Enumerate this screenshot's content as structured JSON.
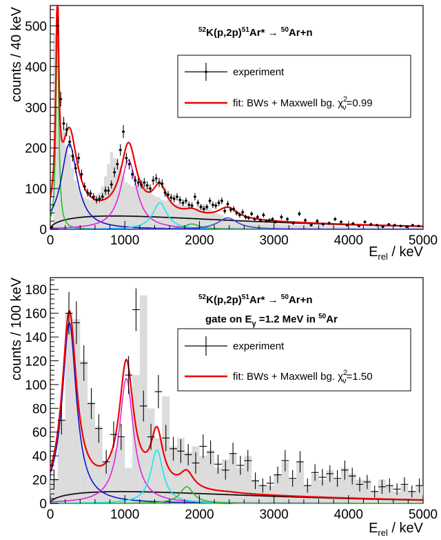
{
  "chart_data": [
    {
      "type": "histogram",
      "title": "^52K(p,2p)^51Ar* → ^50Ar+n",
      "title_parts": {
        "a_sup": "52",
        "a": "K(p,2p)",
        "b_sup": "51",
        "b": "Ar* ",
        "arrow": "→",
        "c_sup": "50",
        "c": "Ar+n"
      },
      "subtitle": "",
      "xlabel": "E_rel / keV",
      "xlabel_parts": {
        "main": "E",
        "sub": "rel",
        "rest": " / keV"
      },
      "ylabel": "counts / 40 keV",
      "xlim": [
        0,
        5000
      ],
      "ylim": [
        0,
        550
      ],
      "xticks": [
        "0",
        "1000",
        "2000",
        "3000",
        "4000",
        "5000"
      ],
      "yticks": [
        "0",
        "100",
        "200",
        "300",
        "400",
        "500"
      ],
      "bin_width": 40,
      "legend": {
        "position": "top-right",
        "entries": [
          {
            "label": "experiment"
          },
          {
            "label": "fit: BWs + Maxwell bg. χ",
            "chi_sub": "ν",
            "chi_sup": "2",
            "chi_value": "=0.99"
          }
        ]
      },
      "colors": {
        "hist_fill": "#dcdcdc",
        "fit": "#ee0000",
        "background": "#111111"
      },
      "histogram_values": [
        5,
        480,
        300,
        240,
        250,
        205,
        185,
        150,
        120,
        105,
        90,
        80,
        75,
        72,
        80,
        85,
        90,
        105,
        130,
        160,
        190,
        175,
        170,
        155,
        130,
        115,
        110,
        105,
        110,
        115,
        120,
        115,
        105,
        95,
        85,
        80,
        78,
        72,
        70,
        72,
        68,
        65,
        62,
        68,
        62,
        58,
        52,
        48,
        50,
        55,
        60,
        62,
        58,
        52,
        45,
        42,
        38,
        35,
        30,
        28,
        25,
        24,
        22,
        22,
        20,
        20,
        18,
        18,
        17,
        16,
        16,
        15,
        15,
        14,
        14,
        13,
        13,
        12,
        12,
        12,
        11,
        11,
        11,
        10,
        10,
        10,
        10,
        9,
        9,
        9,
        9,
        8,
        8,
        8,
        8,
        8,
        7,
        7,
        7,
        7,
        7,
        6,
        6,
        6,
        6,
        6,
        6,
        5,
        5,
        5,
        5,
        5,
        5,
        5,
        5,
        5,
        4,
        4,
        4,
        4,
        4,
        4,
        4,
        4,
        4
      ],
      "data_points": {
        "x": [
          20,
          100,
          140,
          180,
          220,
          260,
          300,
          340,
          380,
          420,
          460,
          500,
          540,
          580,
          620,
          660,
          700,
          740,
          780,
          820,
          860,
          900,
          940,
          980,
          1020,
          1060,
          1100,
          1140,
          1180,
          1220,
          1260,
          1300,
          1340,
          1380,
          1420,
          1460,
          1500,
          1540,
          1580,
          1620,
          1660,
          1700,
          1740,
          1780,
          1820,
          1860,
          1900,
          1940,
          1980,
          2020,
          2060,
          2100,
          2140,
          2180,
          2220,
          2260,
          2300,
          2340,
          2380,
          2420,
          2460,
          2500,
          2540,
          2580,
          2620,
          2660,
          2700,
          2740,
          2780,
          2820,
          2860,
          2900,
          2940,
          2980,
          3020,
          3100,
          3180,
          3260,
          3340,
          3420,
          3500,
          3580,
          3660,
          3740,
          3820,
          3900,
          3980,
          4060,
          4140,
          4220,
          4300,
          4380,
          4460,
          4540,
          4620,
          4700,
          4780,
          4860,
          4940
        ],
        "y": [
          5,
          500,
          320,
          260,
          245,
          215,
          180,
          150,
          175,
          135,
          105,
          90,
          88,
          80,
          72,
          75,
          80,
          95,
          95,
          110,
          140,
          160,
          195,
          240,
          175,
          160,
          135,
          120,
          115,
          110,
          115,
          108,
          100,
          120,
          125,
          115,
          112,
          90,
          85,
          78,
          75,
          80,
          72,
          65,
          70,
          60,
          58,
          80,
          65,
          55,
          50,
          55,
          70,
          60,
          58,
          65,
          70,
          45,
          62,
          48,
          50,
          40,
          35,
          42,
          30,
          28,
          38,
          25,
          30,
          22,
          35,
          20,
          22,
          25,
          18,
          30,
          25,
          15,
          38,
          22,
          10,
          20,
          12,
          15,
          25,
          18,
          10,
          14,
          8,
          18,
          12,
          10,
          6,
          12,
          10,
          8,
          6,
          10,
          8
        ],
        "yerr": [
          3,
          22,
          18,
          16,
          16,
          15,
          14,
          12,
          13,
          12,
          10,
          10,
          9,
          9,
          9,
          9,
          9,
          10,
          10,
          10,
          12,
          13,
          14,
          16,
          13,
          13,
          12,
          11,
          11,
          10,
          11,
          10,
          10,
          11,
          11,
          11,
          11,
          10,
          9,
          9,
          9,
          9,
          9,
          8,
          8,
          8,
          8,
          9,
          8,
          7,
          7,
          7,
          8,
          8,
          8,
          8,
          8,
          7,
          8,
          7,
          7,
          6,
          6,
          7,
          6,
          5,
          6,
          5,
          6,
          5,
          6,
          4,
          5,
          5,
          4,
          6,
          5,
          4,
          6,
          5,
          3,
          5,
          4,
          4,
          5,
          4,
          3,
          4,
          3,
          4,
          4,
          3,
          3,
          3,
          3,
          3,
          3,
          3,
          3
        ]
      },
      "components": [
        {
          "name": "bw1",
          "color": "#22c422",
          "E0": 95,
          "Gamma": 45,
          "A": 500
        },
        {
          "name": "bw2",
          "color": "#1010c8",
          "E0": 255,
          "Gamma": 260,
          "A": 210
        },
        {
          "name": "bw3",
          "color": "#e020e0",
          "E0": 1050,
          "Gamma": 260,
          "A": 170
        },
        {
          "name": "bw4",
          "color": "#10e8f0",
          "E0": 1470,
          "Gamma": 230,
          "A": 65
        },
        {
          "name": "bw5",
          "color": "#30b030",
          "E0": 1900,
          "Gamma": 240,
          "A": 13
        },
        {
          "name": "bw6",
          "color": "#4040d8",
          "E0": 2380,
          "Gamma": 320,
          "A": 28
        }
      ],
      "maxwell_bg": {
        "amplitude": 28,
        "T": 1700
      }
    },
    {
      "type": "histogram",
      "title": "^52K(p,2p)^51Ar* → ^50Ar+n",
      "title_parts": {
        "a_sup": "52",
        "a": "K(p,2p)",
        "b_sup": "51",
        "b": "Ar* ",
        "arrow": "→",
        "c_sup": "50",
        "c": "Ar+n"
      },
      "subtitle": "gate on E_γ =1.2 MeV in ^50Ar",
      "subtitle_parts": {
        "pre": "gate on E",
        "sub": "γ",
        "mid": " =1.2 MeV in ",
        "sup": "50",
        "post": "Ar"
      },
      "xlabel": "E_rel / keV",
      "xlabel_parts": {
        "main": "E",
        "sub": "rel",
        "rest": " / keV"
      },
      "ylabel": "counts / 100 keV",
      "xlim": [
        0,
        5000
      ],
      "ylim": [
        0,
        190
      ],
      "xticks": [
        "0",
        "1000",
        "2000",
        "3000",
        "4000",
        "5000"
      ],
      "yticks": [
        "0",
        "20",
        "40",
        "60",
        "80",
        "100",
        "120",
        "140",
        "160",
        "180"
      ],
      "bin_width": 100,
      "legend": {
        "position": "top-right",
        "entries": [
          {
            "label": "experiment"
          },
          {
            "label": "fit: BWs + Maxwell bg. χ",
            "chi_sub": "ν",
            "chi_sup": "2",
            "chi_value": "=1.50"
          }
        ]
      },
      "colors": {
        "hist_fill": "#dcdcdc",
        "fit": "#ee0000",
        "background": "#111111"
      },
      "histogram_values": [
        20,
        70,
        160,
        155,
        120,
        85,
        65,
        35,
        45,
        55,
        30,
        108,
        175,
        80,
        55,
        90,
        48,
        55,
        43,
        48,
        40,
        45,
        30,
        37,
        42,
        30,
        40,
        20,
        15,
        15,
        25,
        35,
        20,
        35,
        15,
        25,
        20,
        28,
        20,
        30,
        25,
        20,
        20,
        10,
        20,
        15,
        10,
        15,
        10,
        15
      ],
      "data_points": {
        "x": [
          50,
          150,
          250,
          350,
          450,
          550,
          650,
          750,
          850,
          950,
          1050,
          1150,
          1250,
          1350,
          1450,
          1550,
          1650,
          1750,
          1850,
          1950,
          2050,
          2150,
          2250,
          2350,
          2450,
          2550,
          2650,
          2750,
          2850,
          2950,
          3050,
          3150,
          3250,
          3350,
          3450,
          3550,
          3650,
          3750,
          3850,
          3950,
          4050,
          4150,
          4250,
          4350,
          4450,
          4550,
          4650,
          4750,
          4850,
          4950
        ],
        "y": [
          20,
          70,
          160,
          152,
          118,
          84,
          63,
          35,
          58,
          56,
          108,
          163,
          82,
          56,
          94,
          55,
          46,
          44,
          41,
          34,
          48,
          43,
          33,
          28,
          42,
          32,
          36,
          19,
          15,
          17,
          24,
          36,
          21,
          35,
          15,
          26,
          22,
          25,
          21,
          28,
          23,
          16,
          18,
          10,
          14,
          15,
          12,
          16,
          10,
          15
        ],
        "yerr": [
          8,
          12,
          18,
          18,
          15,
          13,
          12,
          10,
          11,
          11,
          16,
          18,
          13,
          11,
          14,
          11,
          10,
          10,
          9,
          9,
          10,
          10,
          8,
          8,
          9,
          8,
          9,
          7,
          6,
          6,
          7,
          9,
          7,
          9,
          6,
          7,
          7,
          7,
          7,
          8,
          7,
          6,
          6,
          5,
          6,
          6,
          5,
          6,
          5,
          6
        ]
      },
      "components": [
        {
          "name": "bw1",
          "color": "#1010c8",
          "E0": 255,
          "Gamma": 230,
          "A": 152
        },
        {
          "name": "bw2",
          "color": "#e020e0",
          "E0": 1020,
          "Gamma": 230,
          "A": 105
        },
        {
          "name": "bw3",
          "color": "#10e8f0",
          "E0": 1430,
          "Gamma": 200,
          "A": 45
        },
        {
          "name": "bw4",
          "color": "#30b030",
          "E0": 1830,
          "Gamma": 220,
          "A": 14
        },
        {
          "name": "bw5",
          "color": "#40c040",
          "E0": 2400,
          "Gamma": 300,
          "A": 0.5
        }
      ],
      "maxwell_bg": {
        "amplitude": 8.5,
        "T": 1900
      }
    }
  ]
}
